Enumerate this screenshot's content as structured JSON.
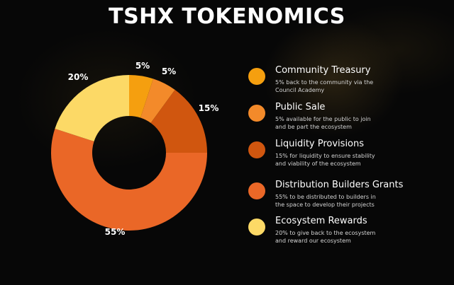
{
  "title": "TSHX TOKENOMICS",
  "legend": [
    {
      "name": "Community Treasury",
      "desc": "5% back to the community via the Council Academy",
      "color": "#f59f0f"
    },
    {
      "name": "Public Sale",
      "desc": "5% available for the public to join and be part the ecosystem",
      "color": "#f38a2a"
    },
    {
      "name": "Liquidity Provisions",
      "desc": "15% for liquidity to ensure stability and viability of the ecosystem",
      "color": "#d0560f"
    },
    {
      "name": "Distribution Builders Grants",
      "desc": "55% to be distributed to builders in the space to develop their projects",
      "color": "#ea6727"
    },
    {
      "name": "Ecosystem Rewards",
      "desc": "20% to give back to the ecosystem and reward our ecosystem",
      "color": "#fcd966"
    }
  ],
  "chart_data": {
    "type": "pie",
    "title": "TSHX TOKENOMICS",
    "donut": true,
    "categories": [
      "Community Treasury",
      "Public Sale",
      "Liquidity Provisions",
      "Distribution Builders Grants",
      "Ecosystem Rewards"
    ],
    "values": [
      5,
      5,
      15,
      55,
      20
    ],
    "labels": [
      "5%",
      "5%",
      "15%",
      "55%",
      "20%"
    ],
    "colors": [
      "#f59f0f",
      "#f38a2a",
      "#d0560f",
      "#ea6727",
      "#fcd966"
    ],
    "legend": "right"
  }
}
